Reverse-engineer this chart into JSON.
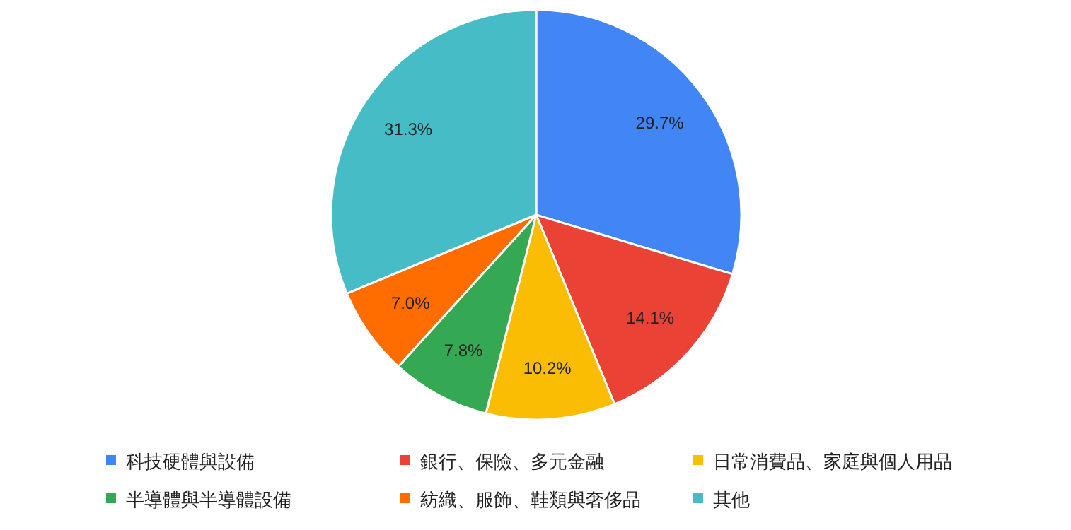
{
  "chart_data": {
    "type": "pie",
    "categories": [
      "科技硬體與設備",
      "銀行、保險、多元金融",
      "日常消費品、家庭與個人用品",
      "半導體與半導體設備",
      "紡織、服飾、鞋類與奢侈品",
      "其他"
    ],
    "values": [
      29.7,
      14.1,
      10.2,
      7.8,
      7.0,
      31.3
    ],
    "colors": [
      "#4285f4",
      "#ea4335",
      "#fbbc04",
      "#34a853",
      "#ff6d01",
      "#46bdc6"
    ],
    "value_labels": [
      "29.7%",
      "14.1%",
      "10.2%",
      "7.8%",
      "7.0%",
      "31.3%"
    ],
    "legend": "bottom"
  }
}
